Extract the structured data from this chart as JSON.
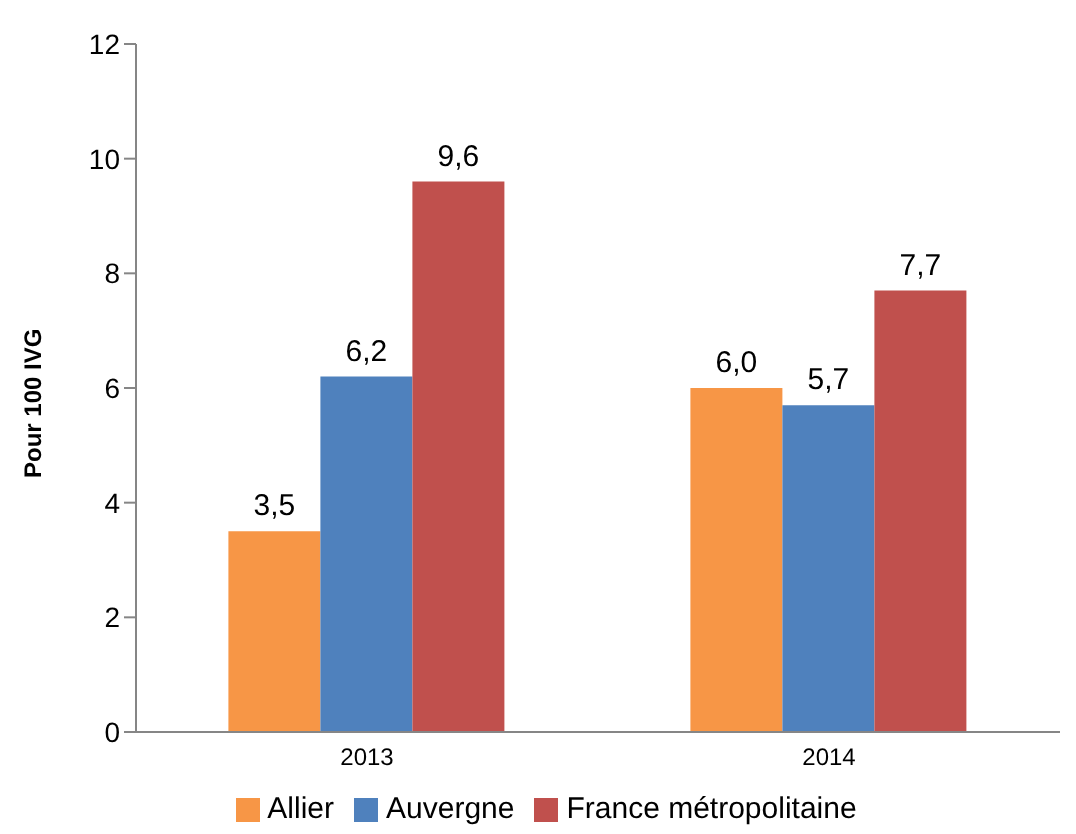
{
  "chart_data": {
    "type": "bar",
    "ylabel": "Pour 100 IVG",
    "categories": [
      "2013",
      "2014"
    ],
    "series": [
      {
        "name": "Allier",
        "color": "#f79646",
        "values": [
          3.5,
          6.0
        ],
        "value_labels": [
          "3,5",
          "6,0"
        ]
      },
      {
        "name": "Auvergne",
        "color": "#4f81bd",
        "values": [
          6.2,
          5.7
        ],
        "value_labels": [
          "6,2",
          "5,7"
        ]
      },
      {
        "name": "France métropolitaine",
        "color": "#c0504d",
        "values": [
          9.6,
          7.7
        ],
        "value_labels": [
          "9,6",
          "7,7"
        ]
      }
    ],
    "ylim": [
      0,
      12
    ],
    "yticks": [
      0,
      2,
      4,
      6,
      8,
      10,
      12
    ],
    "grid": false,
    "legend": "bottom"
  }
}
